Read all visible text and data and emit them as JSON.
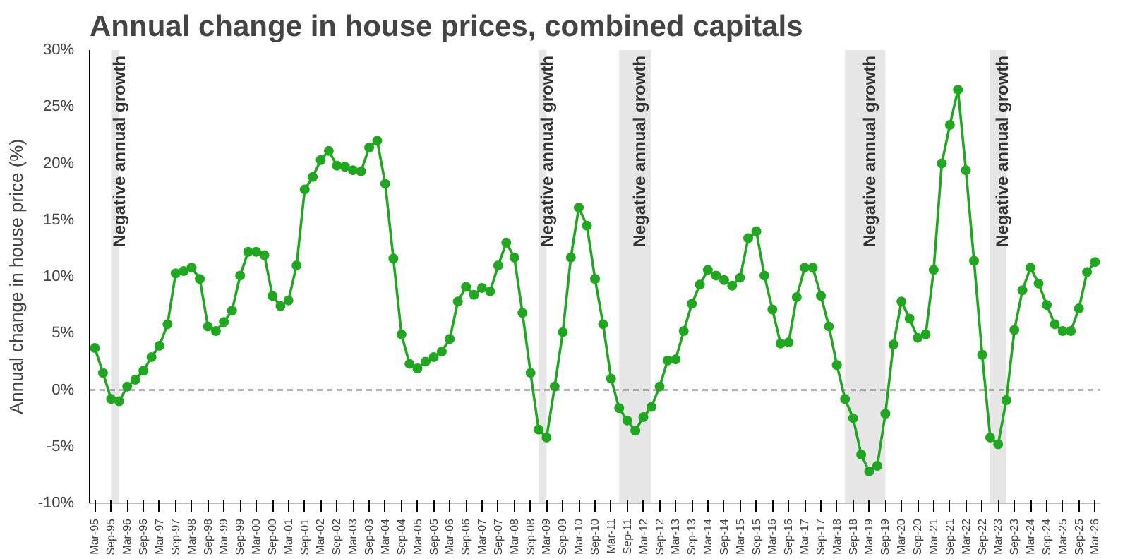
{
  "chart_data": {
    "type": "line",
    "title": "Annual change in house prices, combined capitals",
    "ylabel": "Annual change in house price (%)",
    "x": [
      "1995-03",
      "1995-06",
      "1995-09",
      "1995-12",
      "1996-03",
      "1996-06",
      "1996-09",
      "1996-12",
      "1997-03",
      "1997-06",
      "1997-09",
      "1997-12",
      "1998-03",
      "1998-06",
      "1998-09",
      "1998-12",
      "1999-03",
      "1999-06",
      "1999-09",
      "1999-12",
      "2000-03",
      "2000-06",
      "2000-09",
      "2000-12",
      "2001-03",
      "2001-06",
      "2001-09",
      "2001-12",
      "2002-03",
      "2002-06",
      "2002-09",
      "2002-12",
      "2003-03",
      "2003-06",
      "2003-09",
      "2003-12",
      "2004-03",
      "2004-06",
      "2004-09",
      "2004-12",
      "2005-03",
      "2005-06",
      "2005-09",
      "2005-12",
      "2006-03",
      "2006-06",
      "2006-09",
      "2006-12",
      "2007-03",
      "2007-06",
      "2007-09",
      "2007-12",
      "2008-03",
      "2008-06",
      "2008-09",
      "2008-12",
      "2009-03",
      "2009-06",
      "2009-09",
      "2009-12",
      "2010-03",
      "2010-06",
      "2010-09",
      "2010-12",
      "2011-03",
      "2011-06",
      "2011-09",
      "2011-12",
      "2012-03",
      "2012-06",
      "2012-09",
      "2012-12",
      "2013-03",
      "2013-06",
      "2013-09",
      "2013-12",
      "2014-03",
      "2014-06",
      "2014-09",
      "2014-12",
      "2015-03",
      "2015-06",
      "2015-09",
      "2015-12",
      "2016-03",
      "2016-06",
      "2016-09",
      "2016-12",
      "2017-03",
      "2017-06",
      "2017-09",
      "2017-12",
      "2018-03",
      "2018-06",
      "2018-09",
      "2018-12",
      "2019-03",
      "2019-06",
      "2019-09",
      "2019-12",
      "2020-03",
      "2020-06",
      "2020-09",
      "2020-12",
      "2021-03",
      "2021-06",
      "2021-09",
      "2021-12",
      "2022-03",
      "2022-06",
      "2022-09",
      "2022-12",
      "2023-03",
      "2023-06",
      "2023-09",
      "2023-12",
      "2024-03",
      "2024-06",
      "2024-09",
      "2024-12",
      "2025-03",
      "2025-06",
      "2025-09",
      "2025-12",
      "2026-03"
    ],
    "series": [
      {
        "color": "#1fa81f",
        "values": [
          3.7,
          1.5,
          -0.8,
          -1.0,
          0.3,
          0.9,
          1.7,
          2.9,
          3.9,
          5.8,
          10.3,
          10.5,
          10.8,
          9.8,
          5.6,
          5.2,
          6.0,
          7.0,
          10.1,
          12.2,
          12.2,
          11.9,
          8.3,
          7.4,
          7.9,
          11.0,
          17.7,
          18.8,
          20.3,
          21.1,
          19.8,
          19.7,
          19.4,
          19.3,
          21.4,
          22.0,
          18.2,
          11.6,
          4.9,
          2.3,
          1.9,
          2.5,
          2.9,
          3.4,
          4.5,
          7.8,
          9.1,
          8.4,
          9.0,
          8.7,
          11.0,
          13.0,
          11.7,
          6.8,
          1.5,
          -3.5,
          -4.2,
          0.3,
          5.1,
          11.7,
          16.1,
          14.5,
          9.8,
          5.8,
          1.0,
          -1.6,
          -2.7,
          -3.6,
          -2.4,
          -1.5,
          0.3,
          2.6,
          2.7,
          5.2,
          7.6,
          9.3,
          10.6,
          10.1,
          9.7,
          9.2,
          9.9,
          13.4,
          14.0,
          10.1,
          7.1,
          4.1,
          4.2,
          8.2,
          10.8,
          10.8,
          8.3,
          5.6,
          2.2,
          -0.8,
          -2.5,
          -5.7,
          -7.2,
          -6.7,
          -2.1,
          4.0,
          7.8,
          6.3,
          4.6,
          4.9,
          10.6,
          20.0,
          23.4,
          26.5,
          19.4,
          11.4,
          3.1,
          -4.2,
          -4.8,
          -0.9,
          5.3,
          8.8,
          10.8,
          9.4,
          7.5,
          5.8,
          5.2,
          5.2,
          7.2,
          10.4,
          11.3
        ]
      }
    ],
    "marker": "circle",
    "line_style": "solid",
    "grid": false,
    "xlim": [
      "1995-01",
      "2026-05"
    ],
    "ylim": [
      -10,
      30
    ],
    "yticks": [
      {
        "value": -10,
        "label": "-10%"
      },
      {
        "value": -5,
        "label": "-5%"
      },
      {
        "value": 0,
        "label": "0%"
      },
      {
        "value": 5,
        "label": "5%"
      },
      {
        "value": 10,
        "label": "10%"
      },
      {
        "value": 15,
        "label": "15%"
      },
      {
        "value": 20,
        "label": "20%"
      },
      {
        "value": 25,
        "label": "25%"
      },
      {
        "value": 30,
        "label": "30%"
      }
    ],
    "xticks": [
      {
        "value": "1995-03",
        "label": "Mar-95"
      },
      {
        "value": "1995-09",
        "label": "Sep-95"
      },
      {
        "value": "1996-03",
        "label": "Mar-96"
      },
      {
        "value": "1996-09",
        "label": "Sep-96"
      },
      {
        "value": "1997-03",
        "label": "Mar-97"
      },
      {
        "value": "1997-09",
        "label": "Sep-97"
      },
      {
        "value": "1998-03",
        "label": "Mar-98"
      },
      {
        "value": "1998-09",
        "label": "Sep-98"
      },
      {
        "value": "1999-03",
        "label": "Mar-99"
      },
      {
        "value": "1999-09",
        "label": "Sep-99"
      },
      {
        "value": "2000-03",
        "label": "Mar-00"
      },
      {
        "value": "2000-09",
        "label": "Sep-00"
      },
      {
        "value": "2001-03",
        "label": "Mar-01"
      },
      {
        "value": "2001-09",
        "label": "Sep-01"
      },
      {
        "value": "2002-03",
        "label": "Mar-02"
      },
      {
        "value": "2002-09",
        "label": "Sep-02"
      },
      {
        "value": "2003-03",
        "label": "Mar-03"
      },
      {
        "value": "2003-09",
        "label": "Sep-03"
      },
      {
        "value": "2004-03",
        "label": "Mar-04"
      },
      {
        "value": "2004-09",
        "label": "Sep-04"
      },
      {
        "value": "2005-03",
        "label": "Mar-05"
      },
      {
        "value": "2005-09",
        "label": "Sep-05"
      },
      {
        "value": "2006-03",
        "label": "Mar-06"
      },
      {
        "value": "2006-09",
        "label": "Sep-06"
      },
      {
        "value": "2007-03",
        "label": "Mar-07"
      },
      {
        "value": "2007-09",
        "label": "Sep-07"
      },
      {
        "value": "2008-03",
        "label": "Mar-08"
      },
      {
        "value": "2008-09",
        "label": "Sep-08"
      },
      {
        "value": "2009-03",
        "label": "Mar-09"
      },
      {
        "value": "2009-09",
        "label": "Sep-09"
      },
      {
        "value": "2010-03",
        "label": "Mar-10"
      },
      {
        "value": "2010-09",
        "label": "Sep-10"
      },
      {
        "value": "2011-03",
        "label": "Mar-11"
      },
      {
        "value": "2011-09",
        "label": "Sep-11"
      },
      {
        "value": "2012-03",
        "label": "Mar-12"
      },
      {
        "value": "2012-09",
        "label": "Sep-12"
      },
      {
        "value": "2013-03",
        "label": "Mar-13"
      },
      {
        "value": "2013-09",
        "label": "Sep-13"
      },
      {
        "value": "2014-03",
        "label": "Mar-14"
      },
      {
        "value": "2014-09",
        "label": "Sep-14"
      },
      {
        "value": "2015-03",
        "label": "Mar-15"
      },
      {
        "value": "2015-09",
        "label": "Sep-15"
      },
      {
        "value": "2016-03",
        "label": "Mar-16"
      },
      {
        "value": "2016-09",
        "label": "Sep-16"
      },
      {
        "value": "2017-03",
        "label": "Mar-17"
      },
      {
        "value": "2017-09",
        "label": "Sep-17"
      },
      {
        "value": "2018-03",
        "label": "Mar-18"
      },
      {
        "value": "2018-09",
        "label": "Sep-18"
      },
      {
        "value": "2019-03",
        "label": "Mar-19"
      },
      {
        "value": "2019-09",
        "label": "Sep-19"
      },
      {
        "value": "2020-03",
        "label": "Mar-20"
      },
      {
        "value": "2020-09",
        "label": "Sep-20"
      },
      {
        "value": "2021-03",
        "label": "Mar-21"
      },
      {
        "value": "2021-09",
        "label": "Sep-21"
      },
      {
        "value": "2022-03",
        "label": "Mar-22"
      },
      {
        "value": "2022-09",
        "label": "Sep-22"
      },
      {
        "value": "2023-03",
        "label": "Mar-23"
      },
      {
        "value": "2023-09",
        "label": "Sep-23"
      },
      {
        "value": "2024-03",
        "label": "Mar-24"
      },
      {
        "value": "2024-09",
        "label": "Sep-24"
      },
      {
        "value": "2025-03",
        "label": "Mar-25"
      },
      {
        "value": "2025-09",
        "label": "Sep-25"
      },
      {
        "value": "2026-03",
        "label": "Mar-26"
      }
    ],
    "ref_lines": [
      {
        "axis": "y",
        "value": 0,
        "label": null,
        "color": "#666666",
        "line_style": "dashed"
      }
    ],
    "bands": [
      {
        "axis": "x",
        "from": "1995-09",
        "to": "1995-12",
        "label": "Negative annual growth",
        "color": "#e6e6e6"
      },
      {
        "axis": "x",
        "from": "2008-12",
        "to": "2009-03",
        "label": "Negative annual growth",
        "color": "#e6e6e6"
      },
      {
        "axis": "x",
        "from": "2011-06",
        "to": "2012-06",
        "label": "Negative annual growth",
        "color": "#e6e6e6"
      },
      {
        "axis": "x",
        "from": "2018-06",
        "to": "2019-09",
        "label": "Negative annual growth",
        "color": "#e6e6e6"
      },
      {
        "axis": "x",
        "from": "2022-12",
        "to": "2023-06",
        "label": "Negative annual growth",
        "color": "#e6e6e6"
      }
    ]
  }
}
